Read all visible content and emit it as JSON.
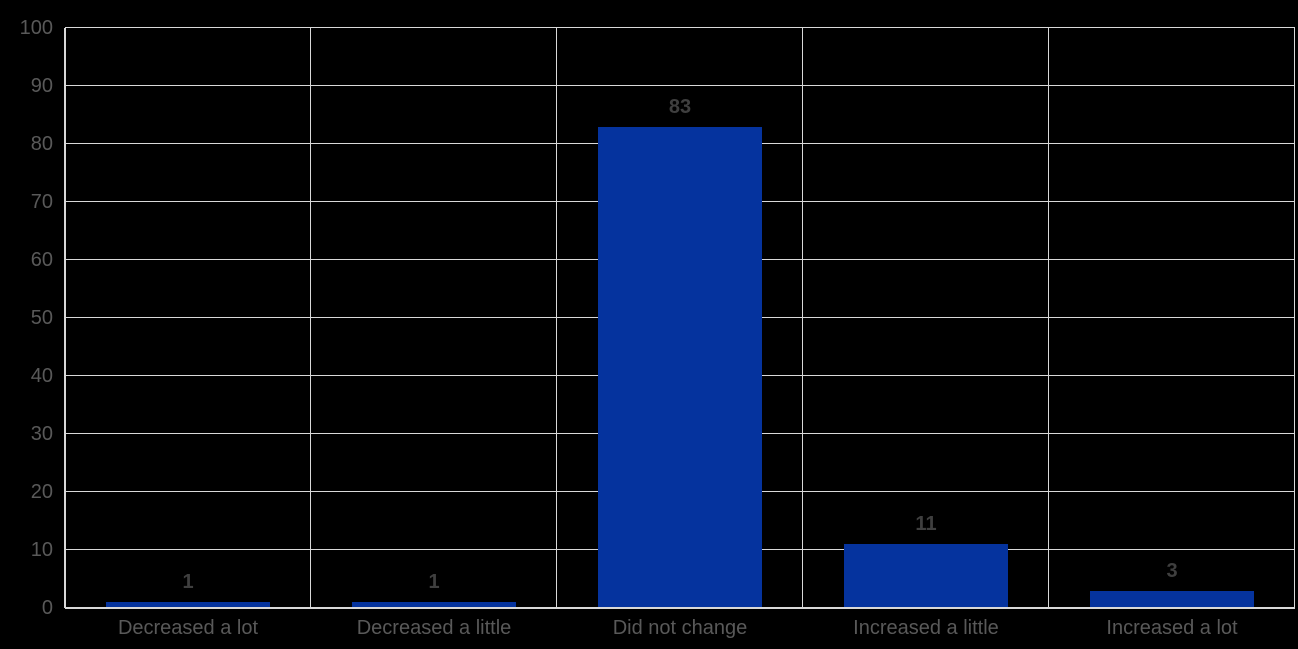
{
  "chart_data": {
    "type": "bar",
    "title": "",
    "xlabel": "",
    "ylabel": "",
    "categories": [
      "Decreased a lot",
      "Decreased a little",
      "Did not change",
      "Increased a little",
      "Increased a lot"
    ],
    "values": [
      1,
      1,
      83,
      11,
      3
    ],
    "data_labels": [
      "1",
      "1",
      "83",
      "11",
      "3"
    ],
    "ylim": [
      0,
      100
    ],
    "y_tick_step": 10,
    "y_tick_labels": [
      "0",
      "10",
      "20",
      "30",
      "40",
      "50",
      "60",
      "70",
      "80",
      "90",
      "100"
    ],
    "grid": true,
    "legend_position": "none",
    "colors": {
      "background": "#000000",
      "bar": "#05339E",
      "gridline": "#D9D9D9",
      "axis_line": "#D9D9D9",
      "tick_label": "#595959",
      "category_label": "#595959",
      "data_label": "#3F3F3F"
    }
  }
}
